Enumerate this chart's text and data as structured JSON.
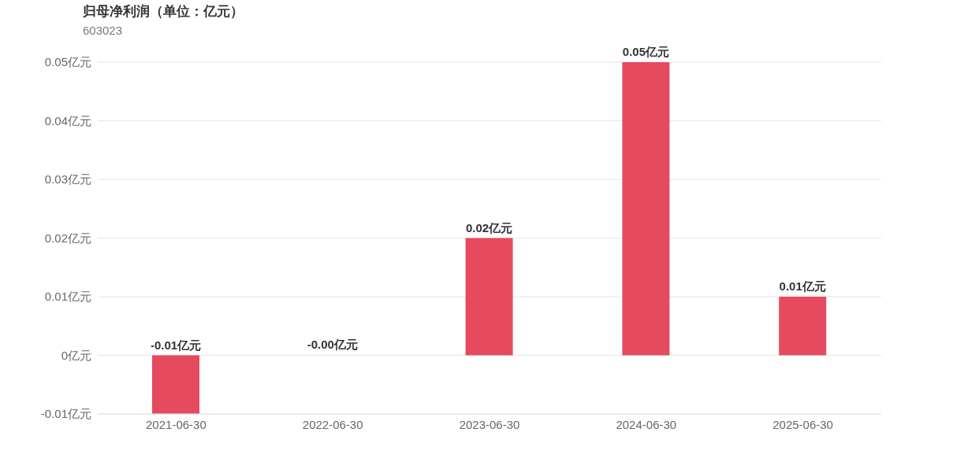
{
  "chart_data": {
    "type": "bar",
    "title": "归母净利润（单位：亿元）",
    "subtitle": "603023",
    "categories": [
      "2021-06-30",
      "2022-06-30",
      "2023-06-30",
      "2024-06-30",
      "2025-06-30"
    ],
    "values": [
      -0.01,
      0,
      0.02,
      0.05,
      0.01
    ],
    "value_labels": [
      "-0.01亿元",
      "-0.00亿元",
      "0.02亿元",
      "0.05亿元",
      "0.01亿元"
    ],
    "color": "#e64a5e",
    "ylim": [
      -0.01,
      0.05
    ],
    "yticks": [
      {
        "value": -0.01,
        "label": "-0.01亿元"
      },
      {
        "value": 0,
        "label": "0亿元"
      },
      {
        "value": 0.01,
        "label": "0.01亿元"
      },
      {
        "value": 0.02,
        "label": "0.02亿元"
      },
      {
        "value": 0.03,
        "label": "0.03亿元"
      },
      {
        "value": 0.04,
        "label": "0.04亿元"
      },
      {
        "value": 0.05,
        "label": "0.05亿元"
      }
    ],
    "grid": "y",
    "legend": false
  }
}
